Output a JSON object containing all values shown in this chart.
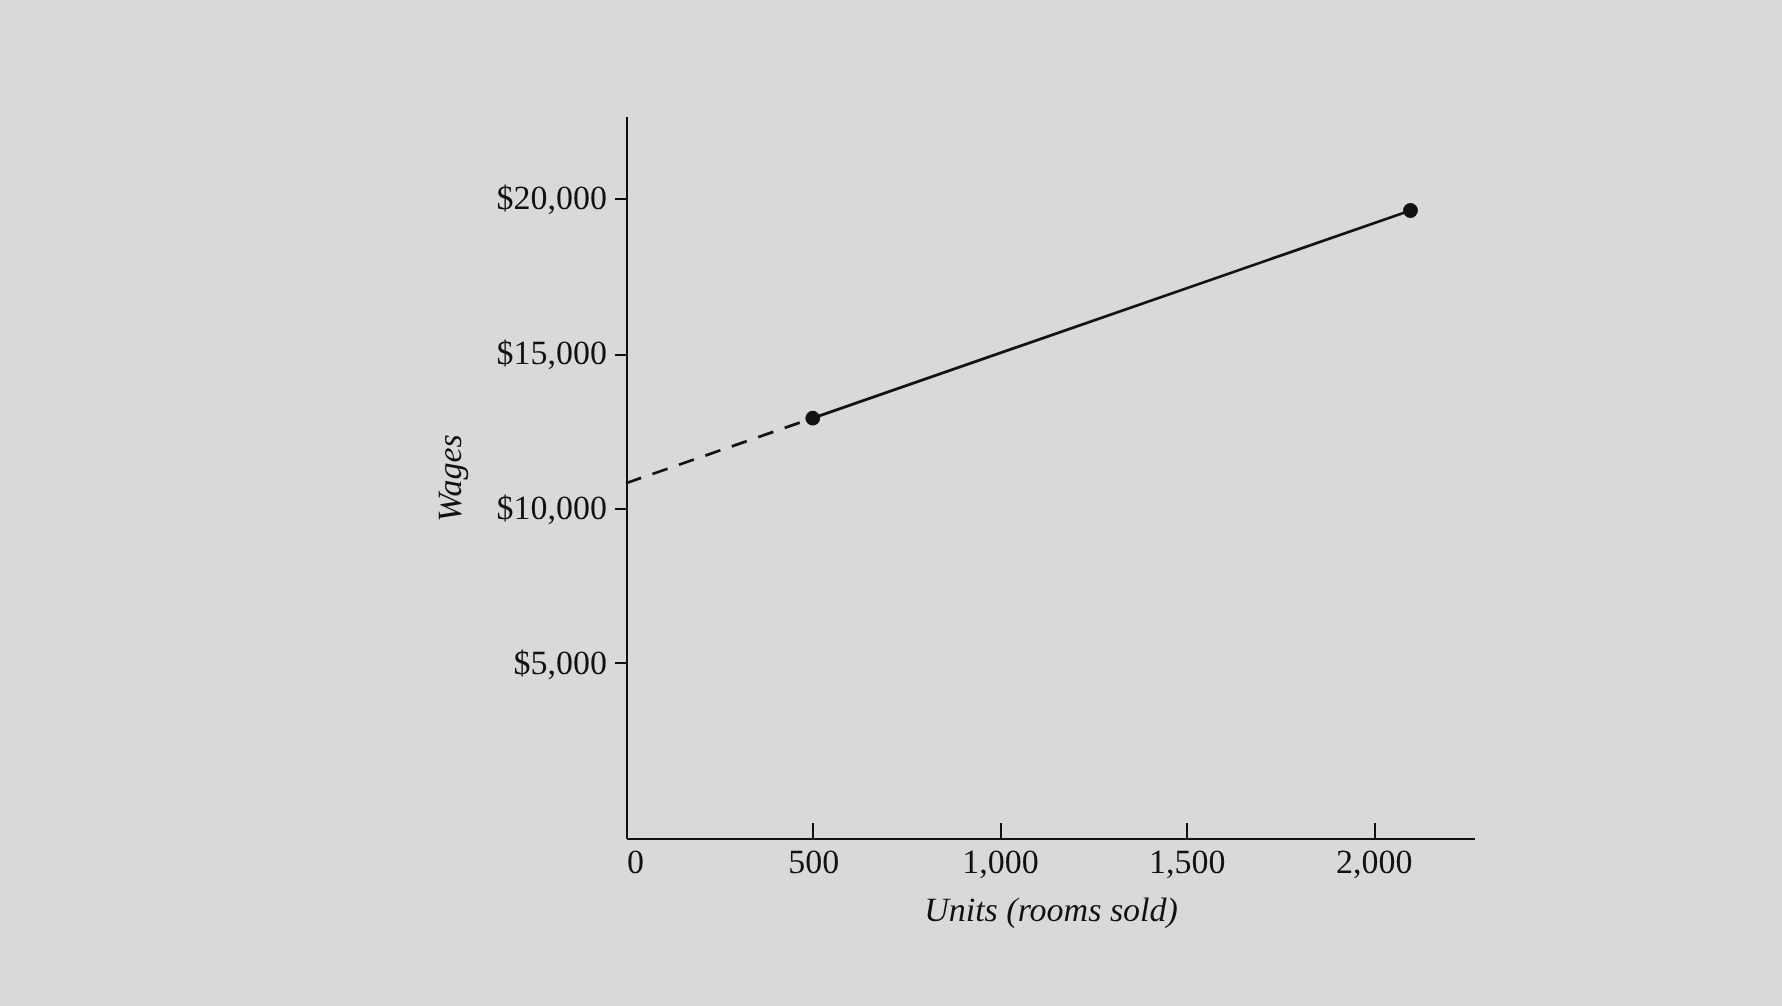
{
  "chart_data": {
    "type": "line",
    "xlabel": "Units (rooms sold)",
    "ylabel": "Wages",
    "xlim": [
      0,
      2270
    ],
    "ylim": [
      -650,
      22650
    ],
    "xticks": [
      0,
      500,
      {
        "value": 1000,
        "label": "1,000"
      },
      {
        "value": 1500,
        "label": "1,500"
      },
      {
        "value": 2000,
        "label": "2,000"
      }
    ],
    "yticks": [
      {
        "value": 5000,
        "label": "$5,000"
      },
      {
        "value": 10000,
        "label": "$10,000"
      },
      {
        "value": 15000,
        "label": "$15,000"
      },
      {
        "value": 20000,
        "label": "$20,000"
      }
    ],
    "series": [
      {
        "color": "#111111",
        "x": [
          500,
          2100
        ],
        "values": [
          12900,
          19600
        ],
        "marker": "circle",
        "line_style": "solid"
      },
      {
        "color": "#111111",
        "x": [
          0,
          500
        ],
        "values": [
          10800,
          12900
        ],
        "marker": "none",
        "line_style": "dashed"
      }
    ]
  }
}
